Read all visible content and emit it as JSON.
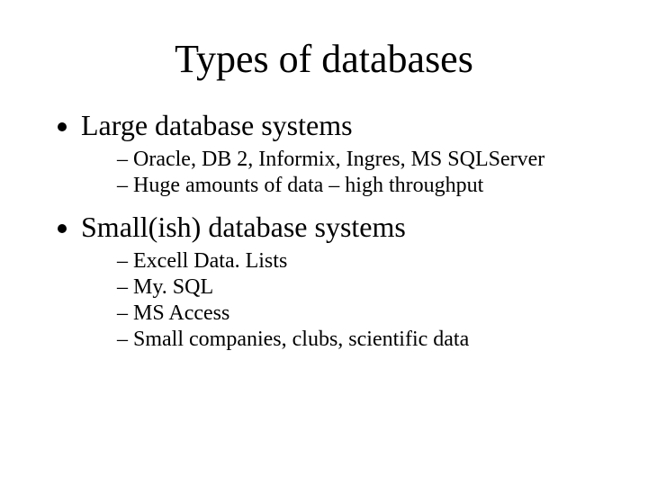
{
  "slide": {
    "title": "Types of databases",
    "title_fontsize": 44,
    "body_fontsize_level1": 32,
    "body_fontsize_level2": 24,
    "font_family": "Times New Roman",
    "background_color": "#ffffff",
    "text_color": "#000000",
    "bullets": [
      {
        "text": "Large database systems",
        "children": [
          "Oracle, DB 2, Informix, Ingres, MS SQLServer",
          "Huge amounts of data – high throughput"
        ]
      },
      {
        "text": "Small(ish) database systems",
        "children": [
          "Excell Data. Lists",
          "My. SQL",
          "MS Access",
          "Small companies, clubs, scientific data"
        ]
      }
    ]
  }
}
